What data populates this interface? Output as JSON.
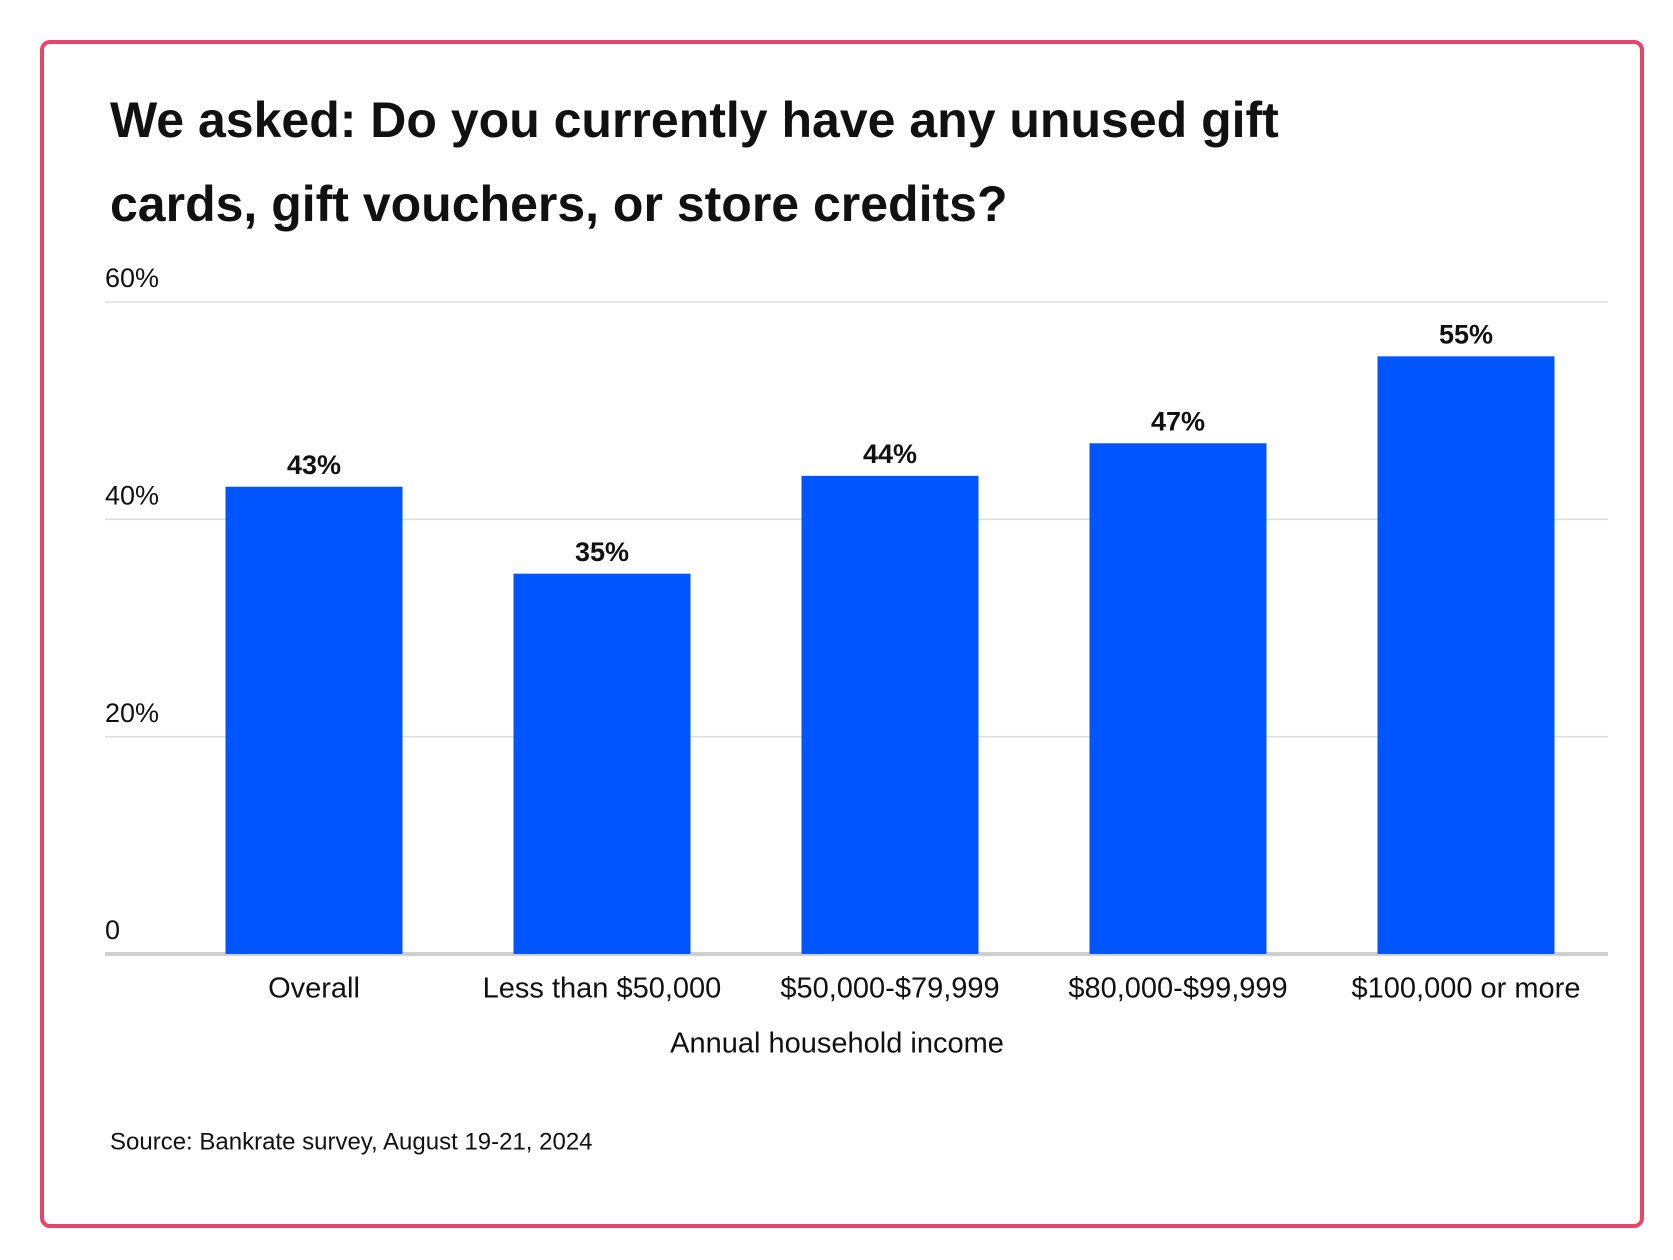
{
  "chart_data": {
    "type": "bar",
    "title": "We asked: Do you currently have any unused gift cards, gift vouchers, or store credits?",
    "categories": [
      "Overall",
      "Less than $50,000",
      "$50,000-$79,999",
      "$80,000-$99,999",
      "$100,000 or more"
    ],
    "values": [
      43,
      35,
      44,
      47,
      55
    ],
    "value_labels": [
      "43%",
      "35%",
      "44%",
      "47%",
      "55%"
    ],
    "color": "#0055ff",
    "x_label": "Annual household income",
    "ylim": [
      0,
      60
    ],
    "yticks": [
      0,
      {
        "value": 20,
        "label": "20%"
      },
      {
        "value": 40,
        "label": "40%"
      },
      {
        "value": 60,
        "label": "60%"
      }
    ],
    "grid": true,
    "source": "Source: Bankrate survey, August 19-21, 2024"
  }
}
